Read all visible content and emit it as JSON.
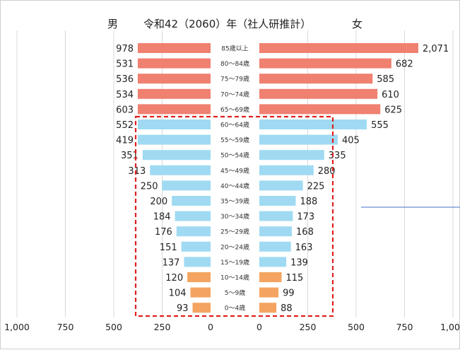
{
  "chart_data": {
    "type": "bar",
    "title": "令和42（2060）年（社人研推計）",
    "left_label": "男",
    "right_label": "女",
    "categories": [
      "85歳以上",
      "80～84歳",
      "75～79歳",
      "70～74歳",
      "65～69歳",
      "60～64歳",
      "55～59歳",
      "50～54歳",
      "45～49歳",
      "40～44歳",
      "35～39歳",
      "30～34歳",
      "25～29歳",
      "20～24歳",
      "15～19歳",
      "10～14歳",
      "5～9歳",
      "0～4歳"
    ],
    "series": [
      {
        "name": "男",
        "values": [
          978,
          531,
          536,
          534,
          603,
          552,
          419,
          351,
          313,
          250,
          200,
          184,
          176,
          151,
          137,
          120,
          104,
          93
        ],
        "value_labels": [
          "978",
          "531",
          "536",
          "534",
          "603",
          "552",
          "419",
          "351",
          "313",
          "250",
          "200",
          "184",
          "176",
          "151",
          "137",
          "120",
          "104",
          "93"
        ]
      },
      {
        "name": "女",
        "values": [
          2071,
          682,
          585,
          610,
          625,
          555,
          405,
          335,
          280,
          225,
          188,
          173,
          168,
          163,
          139,
          115,
          99,
          88
        ],
        "value_labels": [
          "2,071",
          "682",
          "585",
          "610",
          "625",
          "555",
          "405",
          "335",
          "280",
          "225",
          "188",
          "173",
          "168",
          "163",
          "139",
          "115",
          "99",
          "88"
        ]
      }
    ],
    "x_ticks_left": [
      "1,000",
      "750",
      "500",
      "250",
      "0"
    ],
    "x_ticks_right": [
      "0",
      "250",
      "500",
      "750",
      "1,000"
    ],
    "xlim": [
      0,
      1000
    ],
    "grid": true,
    "highlight_box": {
      "from": "60～64歳",
      "to": "0～4歳",
      "color": "#e02020"
    },
    "colors": {
      "elderly": "#f08070",
      "working": "#9fdaf2",
      "young": "#f4a460",
      "grid": "#d9d9d9",
      "annotation_line": "#4472c4"
    }
  }
}
